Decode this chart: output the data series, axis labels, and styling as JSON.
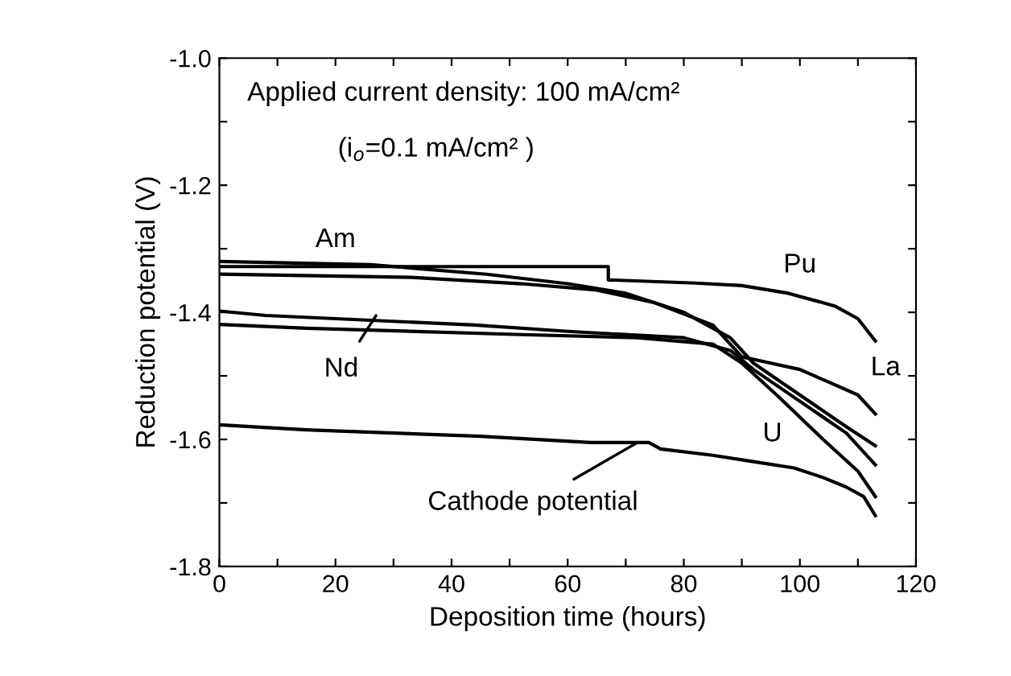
{
  "chart_data": {
    "type": "line",
    "xlabel": "Deposition time (hours)",
    "ylabel": "Reduction potential (V)",
    "xlim": [
      0,
      120
    ],
    "ylim": [
      -1.8,
      -1.0
    ],
    "xticks": [
      0,
      {
        "value": 10,
        "label": null
      },
      20,
      {
        "value": 30,
        "label": null
      },
      40,
      {
        "value": 50,
        "label": null
      },
      60,
      {
        "value": 70,
        "label": null
      },
      80,
      {
        "value": 90,
        "label": null
      },
      100,
      {
        "value": 110,
        "label": null
      },
      120
    ],
    "yticks": [
      -1.8,
      {
        "value": -1.7,
        "label": null
      },
      -1.6,
      {
        "value": -1.5,
        "label": null
      },
      -1.4,
      {
        "value": -1.3,
        "label": null
      },
      -1.2,
      {
        "value": -1.1,
        "label": null
      },
      {
        "value": -1.0,
        "label": "-1.0"
      }
    ],
    "grid": false,
    "legend": false,
    "marker": "none",
    "line_style": "solid",
    "series": [
      {
        "color": "#000000",
        "x": [
          0,
          67,
          67,
          82,
          90,
          98,
          106,
          110,
          113
        ],
        "values": [
          -1.328,
          -1.328,
          -1.349,
          -1.354,
          -1.358,
          -1.37,
          -1.39,
          -1.41,
          -1.445
        ]
      },
      {
        "color": "#000000",
        "x": [
          0,
          26,
          46,
          60,
          70,
          80,
          88,
          92,
          100,
          108,
          113
        ],
        "values": [
          -1.32,
          -1.325,
          -1.34,
          -1.355,
          -1.37,
          -1.4,
          -1.44,
          -1.48,
          -1.53,
          -1.58,
          -1.61
        ]
      },
      {
        "color": "#000000",
        "x": [
          0,
          33,
          52,
          65,
          75,
          85,
          90,
          95,
          100,
          105,
          110,
          113
        ],
        "values": [
          -1.34,
          -1.345,
          -1.355,
          -1.365,
          -1.385,
          -1.42,
          -1.47,
          -1.48,
          -1.49,
          -1.51,
          -1.53,
          -1.56
        ]
      },
      {
        "color": "#000000",
        "x": [
          0,
          8,
          44,
          60,
          80,
          88,
          92,
          100,
          108,
          113
        ],
        "values": [
          -1.398,
          -1.405,
          -1.42,
          -1.43,
          -1.44,
          -1.46,
          -1.49,
          -1.54,
          -1.59,
          -1.64
        ]
      },
      {
        "color": "#000000",
        "x": [
          0,
          15,
          52,
          72,
          85,
          90,
          96,
          104,
          110,
          113
        ],
        "values": [
          -1.419,
          -1.425,
          -1.435,
          -1.44,
          -1.45,
          -1.48,
          -1.53,
          -1.6,
          -1.65,
          -1.69
        ]
      },
      {
        "color": "#000000",
        "x": [
          0,
          15,
          45,
          64,
          74,
          76,
          85,
          92,
          99,
          104,
          108,
          111,
          113
        ],
        "values": [
          -1.577,
          -1.585,
          -1.595,
          -1.605,
          -1.605,
          -1.615,
          -1.625,
          -1.635,
          -1.645,
          -1.66,
          -1.675,
          -1.69,
          -1.72
        ]
      }
    ],
    "annotations": [
      "Applied current density: 100 mA/cm²",
      "(i$_{o}$=0.1 mA/cm² )",
      {
        "text": "Am",
        "x": 20,
        "y": -1.32
      },
      {
        "text": "Pu",
        "x": 100,
        "y": -1.36
      },
      "La",
      "U",
      {
        "text": "Nd",
        "x": 27,
        "y": -1.405
      },
      {
        "text": "Cathode potential",
        "x": 72,
        "y": -1.605
      }
    ]
  }
}
